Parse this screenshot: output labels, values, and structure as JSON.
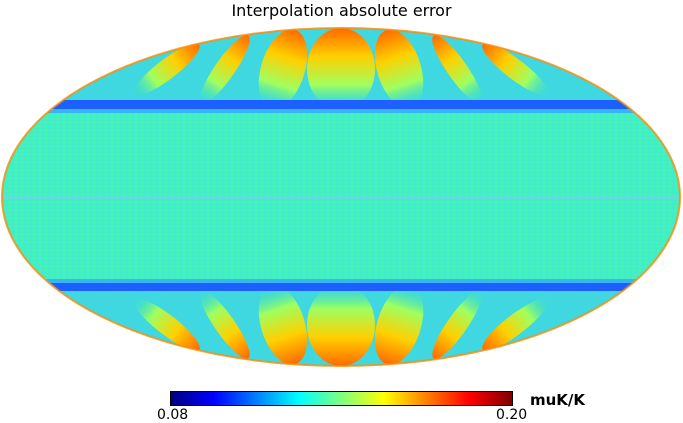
{
  "chart_data": {
    "type": "heatmap",
    "projection": "mollweide",
    "title": "Interpolation absolute error",
    "colormap": "jet",
    "colorbar": {
      "min": 0.08,
      "max": 0.2,
      "min_label": "0.08",
      "max_label": "0.20",
      "unit": "muK/K"
    },
    "colors": {
      "stops": [
        "#00007f",
        "#0000ff",
        "#007fff",
        "#00ffff",
        "#7fff7f",
        "#ffff00",
        "#ff7f00",
        "#ff0000",
        "#7f0000"
      ]
    }
  }
}
